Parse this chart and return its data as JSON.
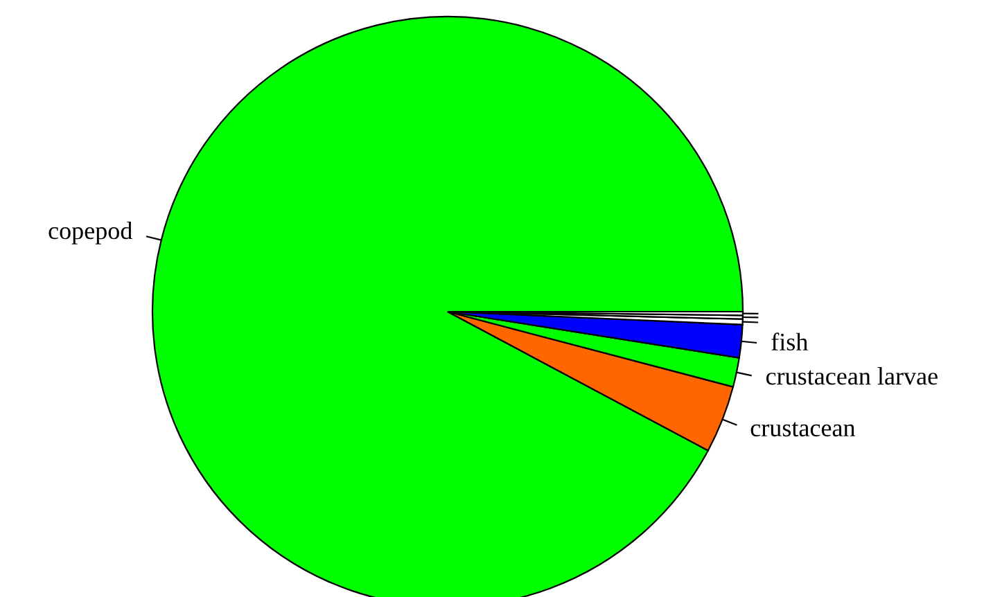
{
  "chart_data": {
    "type": "pie",
    "categories": [
      "copepod",
      "crustacean",
      "crustacean larvae",
      "fish",
      null,
      null,
      null
    ],
    "values": [
      92.2,
      3.7,
      1.6,
      1.8,
      0.3,
      0.2,
      0.2
    ],
    "colors": [
      "#00ff00",
      "#ff6600",
      "#00ff00",
      "#0000ff",
      "#ffffff",
      "#ffffff",
      "#ffffff"
    ]
  }
}
